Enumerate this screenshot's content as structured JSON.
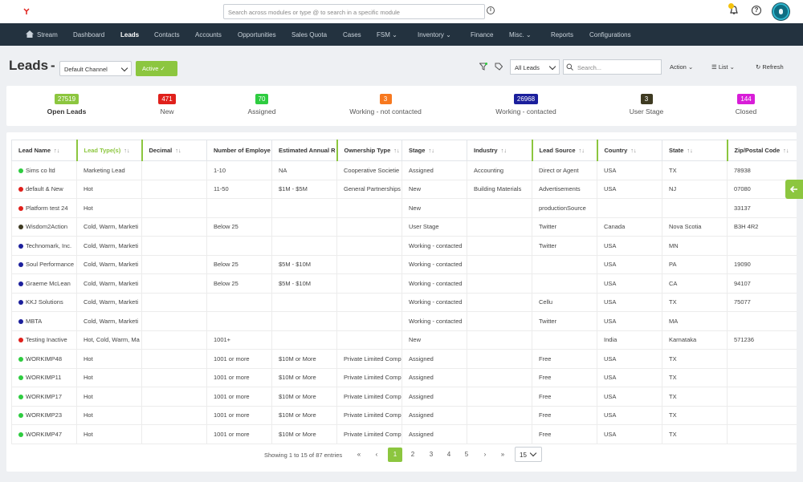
{
  "header": {
    "search_placeholder": "Search across modules or type @ to search in a specific module"
  },
  "nav": {
    "items": [
      "Stream",
      "Dashboard",
      "Leads",
      "Contacts",
      "Accounts",
      "Opportunities",
      "Sales Quota",
      "Cases",
      "FSM",
      "Inventory",
      "Finance",
      "Misc.",
      "Reports",
      "Configurations"
    ]
  },
  "toolbar": {
    "title": "Leads",
    "dash": "-",
    "channel": "Default Channel",
    "active_label": "Active",
    "all_leads": "All Leads",
    "search_placeholder": "Search...",
    "action": "Action",
    "list": "List",
    "refresh": "Refresh"
  },
  "stats": [
    {
      "value": "27519",
      "label": "Open Leads",
      "color": "#8cc63f"
    },
    {
      "value": "471",
      "label": "New",
      "color": "#e0201b"
    },
    {
      "value": "70",
      "label": "Assigned",
      "color": "#2ecc40"
    },
    {
      "value": "3",
      "label": "Working - not contacted",
      "color": "#f7781f"
    },
    {
      "value": "26968",
      "label": "Working - contacted",
      "color": "#1b1f9c"
    },
    {
      "value": "3",
      "label": "User Stage",
      "color": "#3e3a21"
    },
    {
      "value": "144",
      "label": "Closed",
      "color": "#d81dd8"
    }
  ],
  "table": {
    "headers": [
      "Lead Name",
      "Lead Type(s)",
      "Decimal",
      "Number of Employe",
      "Estimated Annual R",
      "Ownership Type",
      "Stage",
      "Industry",
      "Lead Source",
      "Country",
      "State",
      "Zip/Postal Code"
    ],
    "rows": [
      {
        "status": "#2ecc40",
        "cells": [
          "Sims co ltd",
          "Marketing Lead",
          "",
          "1-10",
          "NA",
          "Cooperative Societie",
          "Assigned",
          "Accounting",
          "Direct or Agent",
          "USA",
          "TX",
          "78938"
        ]
      },
      {
        "status": "#e0201b",
        "cells": [
          "default & New",
          "Hot",
          "",
          "11-50",
          "$1M - $5M",
          "General Partnerships",
          "New",
          "Building Materials",
          "Advertisements",
          "USA",
          "NJ",
          "07080"
        ]
      },
      {
        "status": "#e0201b",
        "cells": [
          "Platform test 24",
          "Hot",
          "",
          "",
          "",
          "",
          "New",
          "",
          "productionSource",
          "",
          "",
          "33137"
        ]
      },
      {
        "status": "#3e3a21",
        "cells": [
          "Wisdom2Action",
          "Cold, Warm, Marketi",
          "",
          "Below 25",
          "",
          "",
          "User Stage",
          "",
          "Twitter",
          "Canada",
          "Nova Scotia",
          "B3H 4R2"
        ]
      },
      {
        "status": "#1b1f9c",
        "cells": [
          "Technomark, Inc.",
          "Cold, Warm, Marketi",
          "",
          "",
          "",
          "",
          "Working - contacted",
          "",
          "Twitter",
          "USA",
          "MN",
          ""
        ]
      },
      {
        "status": "#1b1f9c",
        "cells": [
          "Soul Performance",
          "Cold, Warm, Marketi",
          "",
          "Below 25",
          "$5M - $10M",
          "",
          "Working - contacted",
          "",
          "",
          "USA",
          "PA",
          "19090"
        ]
      },
      {
        "status": "#1b1f9c",
        "cells": [
          "Graeme McLean",
          "Cold, Warm, Marketi",
          "",
          "Below 25",
          "$5M - $10M",
          "",
          "Working - contacted",
          "",
          "",
          "USA",
          "CA",
          "94107"
        ]
      },
      {
        "status": "#1b1f9c",
        "cells": [
          "KKJ Solutions",
          "Cold, Warm, Marketi",
          "",
          "",
          "",
          "",
          "Working - contacted",
          "",
          "Cellu",
          "USA",
          "TX",
          "75077"
        ]
      },
      {
        "status": "#1b1f9c",
        "cells": [
          "MBTA",
          "Cold, Warm, Marketi",
          "",
          "",
          "",
          "",
          "Working - contacted",
          "",
          "Twitter",
          "USA",
          "MA",
          ""
        ]
      },
      {
        "status": "#e0201b",
        "cells": [
          "Testing Inactive",
          "Hot, Cold, Warm, Ma",
          "",
          "1001+",
          "",
          "",
          "New",
          "",
          "",
          "India",
          "Karnataka",
          "571236"
        ]
      },
      {
        "status": "#2ecc40",
        "cells": [
          "WORKIMP48",
          "Hot",
          "",
          "1001 or more",
          "$10M or More",
          "Private Limited Comp",
          "Assigned",
          "",
          "Free",
          "USA",
          "TX",
          ""
        ]
      },
      {
        "status": "#2ecc40",
        "cells": [
          "WORKIMP11",
          "Hot",
          "",
          "1001 or more",
          "$10M or More",
          "Private Limited Comp",
          "Assigned",
          "",
          "Free",
          "USA",
          "TX",
          ""
        ]
      },
      {
        "status": "#2ecc40",
        "cells": [
          "WORKIMP17",
          "Hot",
          "",
          "1001 or more",
          "$10M or More",
          "Private Limited Comp",
          "Assigned",
          "",
          "Free",
          "USA",
          "TX",
          ""
        ]
      },
      {
        "status": "#2ecc40",
        "cells": [
          "WORKIMP23",
          "Hot",
          "",
          "1001 or more",
          "$10M or More",
          "Private Limited Comp",
          "Assigned",
          "",
          "Free",
          "USA",
          "TX",
          ""
        ]
      },
      {
        "status": "#2ecc40",
        "cells": [
          "WORKIMP47",
          "Hot",
          "",
          "1001 or more",
          "$10M or More",
          "Private Limited Comp",
          "Assigned",
          "",
          "Free",
          "USA",
          "TX",
          ""
        ]
      }
    ]
  },
  "pagination": {
    "info": "Showing 1 to 15 of 87 entries",
    "first": "«",
    "prev": "‹",
    "pages": [
      "1",
      "2",
      "3",
      "4",
      "5"
    ],
    "current": "1",
    "next": "›",
    "last": "»",
    "page_size": "15"
  },
  "colors": {
    "accent": "#8cc63f",
    "nav_bg": "#23323f"
  }
}
